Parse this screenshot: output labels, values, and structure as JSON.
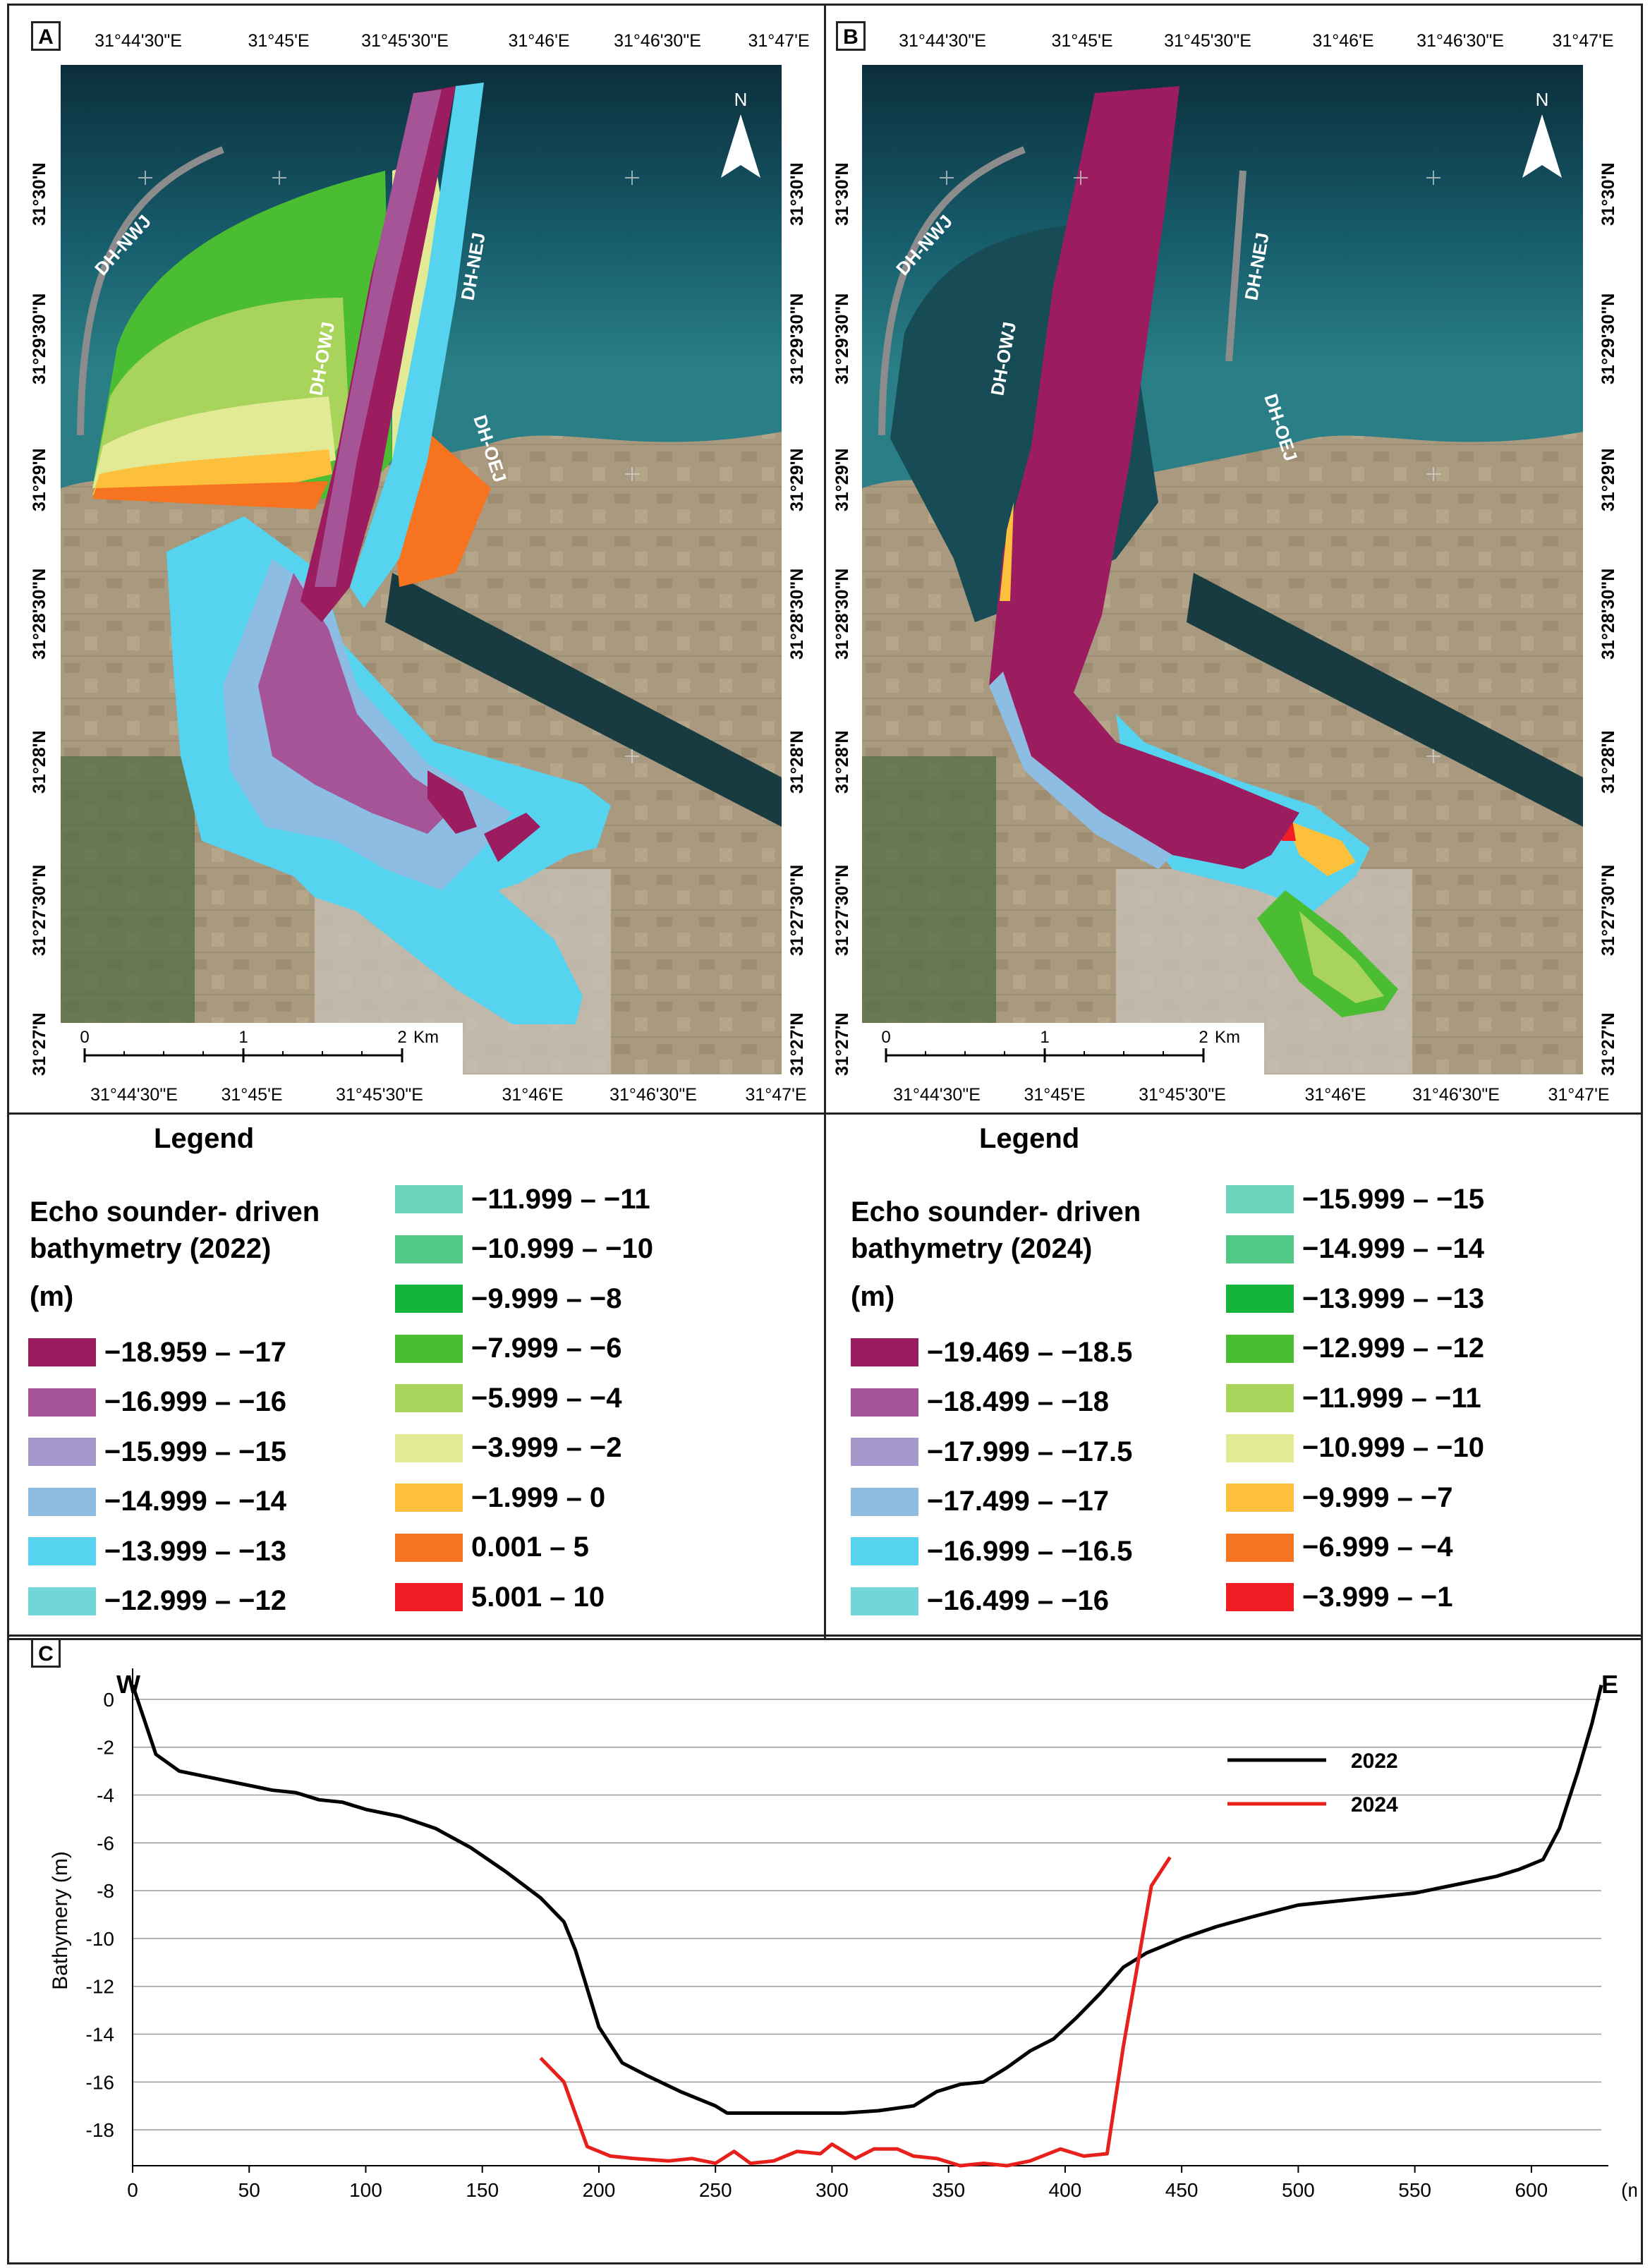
{
  "panels": {
    "a": {
      "label": "A",
      "top_ticks": [
        "31°44'30\"E",
        "31°45'E",
        "31°45'30\"E",
        "31°46'E",
        "31°46'30\"E",
        "31°47'E"
      ],
      "bottom_ticks": [
        "31°44'30\"E",
        "31°45'E",
        "31°45'30\"E",
        "31°46'E",
        "31°46'30\"E",
        "31°47'E"
      ],
      "lat_ticks": [
        "31°30'N",
        "31°29'30\"N",
        "31°29'N",
        "31°28'30\"N",
        "31°28'N",
        "31°27'30\"N",
        "31°27'N"
      ],
      "north": "N",
      "jetties": [
        "DH-NWJ",
        "DH-OWJ",
        "DH-NEJ",
        "DH-OEJ"
      ],
      "scale": {
        "labels": [
          "0",
          "1",
          "2"
        ],
        "unit": "Km"
      }
    },
    "b": {
      "label": "B",
      "top_ticks": [
        "31°44'30\"E",
        "31°45'E",
        "31°45'30\"E",
        "31°46'E",
        "31°46'30\"E",
        "31°47'E"
      ],
      "bottom_ticks": [
        "31°44'30\"E",
        "31°45'E",
        "31°45'30\"E",
        "31°46'E",
        "31°46'30\"E",
        "31°47'E"
      ],
      "lat_ticks": [
        "31°30'N",
        "31°29'30\"N",
        "31°29'N",
        "31°28'30\"N",
        "31°28'N",
        "31°27'30\"N",
        "31°27'N"
      ],
      "north": "N",
      "jetties": [
        "DH-NWJ",
        "DH-OWJ",
        "DH-NEJ",
        "DH-OEJ"
      ],
      "scale": {
        "labels": [
          "0",
          "1",
          "2"
        ],
        "unit": "Km"
      }
    },
    "c": {
      "label": "C"
    }
  },
  "legend_a": {
    "title": "Legend",
    "heading": [
      "Echo sounder- driven",
      "bathymetry (2022)",
      "(m)"
    ],
    "items": [
      {
        "label": "−18.959 – −17",
        "color": "#9c1d5f"
      },
      {
        "label": "−16.999 – −16",
        "color": "#a55497"
      },
      {
        "label": "−15.999 – −15",
        "color": "#a697cb"
      },
      {
        "label": "−14.999 – −14",
        "color": "#8ebde3"
      },
      {
        "label": "−13.999 – −13",
        "color": "#56d3ef"
      },
      {
        "label": "−12.999 – −12",
        "color": "#72d6d9"
      },
      {
        "label": "−11.999 – −11",
        "color": "#6ad5bb"
      },
      {
        "label": "−10.999 – −10",
        "color": "#4fc985"
      },
      {
        "label": "−9.999 – −8",
        "color": "#15b43a"
      },
      {
        "label": "−7.999 – −6",
        "color": "#4bbd33"
      },
      {
        "label": "−5.999 – −4",
        "color": "#a9d45b"
      },
      {
        "label": "−3.999 – −2",
        "color": "#e2ea95"
      },
      {
        "label": "−1.999 – 0",
        "color": "#fcc03c"
      },
      {
        "label": "0.001 – 5",
        "color": "#f6731f"
      },
      {
        "label": "5.001 – 10",
        "color": "#f21d24"
      }
    ]
  },
  "legend_b": {
    "title": "Legend",
    "heading": [
      "Echo sounder- driven",
      "bathymetry (2024)",
      "(m)"
    ],
    "items": [
      {
        "label": "−19.469 – −18.5",
        "color": "#9c1d5f"
      },
      {
        "label": "−18.499 – −18",
        "color": "#a55497"
      },
      {
        "label": "−17.999 – −17.5",
        "color": "#a697cb"
      },
      {
        "label": "−17.499 – −17",
        "color": "#8ebde3"
      },
      {
        "label": "−16.999 – −16.5",
        "color": "#56d3ef"
      },
      {
        "label": "−16.499 – −16",
        "color": "#72d6d9"
      },
      {
        "label": "−15.999 – −15",
        "color": "#6ad5bb"
      },
      {
        "label": "−14.999 – −14",
        "color": "#4fc985"
      },
      {
        "label": "−13.999 – −13",
        "color": "#15b43a"
      },
      {
        "label": "−12.999 – −12",
        "color": "#4bbd33"
      },
      {
        "label": "−11.999 – −11",
        "color": "#a9d45b"
      },
      {
        "label": "−10.999 – −10",
        "color": "#e2ea95"
      },
      {
        "label": "−9.999 – −7",
        "color": "#fcc03c"
      },
      {
        "label": "−6.999 – −4",
        "color": "#f6731f"
      },
      {
        "label": "−3.999 – −1",
        "color": "#f21d24"
      }
    ]
  },
  "chart_data": {
    "type": "line",
    "title": "",
    "ylabel": "Bathymery (m)",
    "xunit": "(m)",
    "left_label": "W",
    "right_label": "E",
    "xlim": [
      0,
      630
    ],
    "ylim": [
      -19.5,
      1
    ],
    "xticks": [
      0,
      50,
      100,
      150,
      200,
      250,
      300,
      350,
      400,
      450,
      500,
      550,
      600
    ],
    "yticks": [
      0,
      -2,
      -4,
      -6,
      -8,
      -10,
      -12,
      -14,
      -16,
      -18
    ],
    "ytick_labels": [
      "0",
      "-2",
      "-4",
      "-6",
      "-8",
      "-10",
      "-12",
      "-14",
      "-16",
      "-18"
    ],
    "grid": true,
    "legend_position": "top-right",
    "series": [
      {
        "name": "2022",
        "color": "#000000",
        "points": [
          [
            0,
            0.6
          ],
          [
            10,
            -2.3
          ],
          [
            20,
            -3.0
          ],
          [
            40,
            -3.4
          ],
          [
            60,
            -3.8
          ],
          [
            70,
            -3.9
          ],
          [
            80,
            -4.2
          ],
          [
            90,
            -4.3
          ],
          [
            100,
            -4.6
          ],
          [
            115,
            -4.9
          ],
          [
            130,
            -5.4
          ],
          [
            145,
            -6.2
          ],
          [
            160,
            -7.2
          ],
          [
            175,
            -8.3
          ],
          [
            185,
            -9.3
          ],
          [
            190,
            -10.5
          ],
          [
            200,
            -13.7
          ],
          [
            210,
            -15.2
          ],
          [
            220,
            -15.7
          ],
          [
            235,
            -16.4
          ],
          [
            250,
            -17.0
          ],
          [
            255,
            -17.3
          ],
          [
            270,
            -17.3
          ],
          [
            290,
            -17.3
          ],
          [
            305,
            -17.3
          ],
          [
            320,
            -17.2
          ],
          [
            335,
            -17.0
          ],
          [
            345,
            -16.4
          ],
          [
            355,
            -16.1
          ],
          [
            365,
            -16.0
          ],
          [
            375,
            -15.4
          ],
          [
            385,
            -14.7
          ],
          [
            395,
            -14.2
          ],
          [
            405,
            -13.3
          ],
          [
            415,
            -12.3
          ],
          [
            425,
            -11.2
          ],
          [
            435,
            -10.6
          ],
          [
            450,
            -10.0
          ],
          [
            465,
            -9.5
          ],
          [
            480,
            -9.1
          ],
          [
            500,
            -8.6
          ],
          [
            520,
            -8.4
          ],
          [
            550,
            -8.1
          ],
          [
            570,
            -7.7
          ],
          [
            585,
            -7.4
          ],
          [
            595,
            -7.1
          ],
          [
            605,
            -6.7
          ],
          [
            612,
            -5.4
          ],
          [
            620,
            -3.0
          ],
          [
            626,
            -1.0
          ],
          [
            630,
            0.6
          ]
        ]
      },
      {
        "name": "2024",
        "color": "#e8201c",
        "points": [
          [
            175,
            -15.0
          ],
          [
            185,
            -16.0
          ],
          [
            195,
            -18.7
          ],
          [
            205,
            -19.1
          ],
          [
            215,
            -19.2
          ],
          [
            230,
            -19.3
          ],
          [
            240,
            -19.2
          ],
          [
            250,
            -19.4
          ],
          [
            258,
            -18.9
          ],
          [
            265,
            -19.4
          ],
          [
            275,
            -19.3
          ],
          [
            285,
            -18.9
          ],
          [
            295,
            -19.0
          ],
          [
            300,
            -18.6
          ],
          [
            310,
            -19.2
          ],
          [
            318,
            -18.8
          ],
          [
            328,
            -18.8
          ],
          [
            335,
            -19.1
          ],
          [
            345,
            -19.2
          ],
          [
            355,
            -19.5
          ],
          [
            365,
            -19.4
          ],
          [
            375,
            -19.5
          ],
          [
            385,
            -19.3
          ],
          [
            398,
            -18.8
          ],
          [
            408,
            -19.1
          ],
          [
            418,
            -19.0
          ],
          [
            425,
            -14.5
          ],
          [
            437,
            -7.8
          ],
          [
            445,
            -6.6
          ]
        ]
      }
    ]
  }
}
